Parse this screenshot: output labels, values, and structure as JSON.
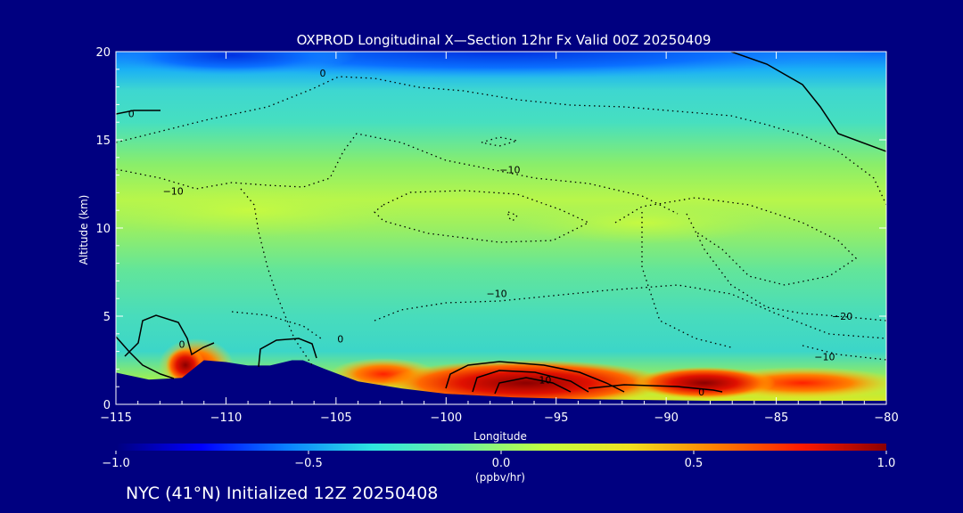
{
  "footer": "NYC (41°N) Initialized 12Z 20250408",
  "chart_data": {
    "type": "heatmap",
    "title": "OXPROD Longitudinal X—Section 12hr  Fx Valid 00Z 20250409",
    "xlabel": "Longitude",
    "ylabel": "Altitude (km)",
    "xlim": [
      -115,
      -80
    ],
    "ylim": [
      0,
      20
    ],
    "x_ticks": [
      -115,
      -110,
      -105,
      -100,
      -95,
      -90,
      -85,
      -80
    ],
    "x_tick_labels": [
      "−115",
      "−110",
      "−105",
      "−100",
      "−95",
      "−90",
      "−85",
      "−80"
    ],
    "y_ticks": [
      0,
      5,
      10,
      15,
      20
    ],
    "y_tick_labels": [
      "0",
      "5",
      "10",
      "15",
      "20"
    ],
    "colorbar": {
      "min": -1.0,
      "max": 1.0,
      "ticks": [
        -1.0,
        -0.5,
        0.0,
        0.5,
        1.0
      ],
      "tick_labels": [
        "−1.0",
        "−0.5",
        "0.0",
        "0.5",
        "1.0"
      ],
      "label": "(ppbv/hr)",
      "colors": [
        "#00007f",
        "#0000ff",
        "#0a80ff",
        "#2ee6e0",
        "#6cf0a0",
        "#c0ff40",
        "#f0e020",
        "#ff8000",
        "#ff1a00",
        "#8b0000"
      ]
    },
    "terrain": {
      "lon": [
        -115,
        -113.5,
        -112,
        -111,
        -110,
        -109,
        -108,
        -107,
        -106.5,
        -105.5,
        -104,
        -102,
        -100,
        -97,
        -94,
        -91,
        -88,
        -85,
        -82,
        -80
      ],
      "alt": [
        1.8,
        1.4,
        1.5,
        2.5,
        2.4,
        2.2,
        2.2,
        2.5,
        2.5,
        2.0,
        1.3,
        0.9,
        0.6,
        0.4,
        0.3,
        0.25,
        0.2,
        0.2,
        0.2,
        0.2
      ]
    },
    "contour_labels": [
      {
        "text": "0",
        "lon": -105.6,
        "alt": 18.8
      },
      {
        "text": "0",
        "lon": -114.3,
        "alt": 16.5
      },
      {
        "text": "−10",
        "lon": -112.4,
        "alt": 12.1
      },
      {
        "text": "−10",
        "lon": -97.1,
        "alt": 13.3
      },
      {
        "text": "−10",
        "lon": -97.7,
        "alt": 6.3
      },
      {
        "text": "−20",
        "lon": -82.0,
        "alt": 5.0
      },
      {
        "text": "−10",
        "lon": -82.8,
        "alt": 2.7
      },
      {
        "text": "0",
        "lon": -112.0,
        "alt": 3.4
      },
      {
        "text": "0",
        "lon": -104.8,
        "alt": 3.7
      },
      {
        "text": "10",
        "lon": -95.5,
        "alt": 1.4
      },
      {
        "text": "0",
        "lon": -88.4,
        "alt": 0.7
      }
    ]
  }
}
